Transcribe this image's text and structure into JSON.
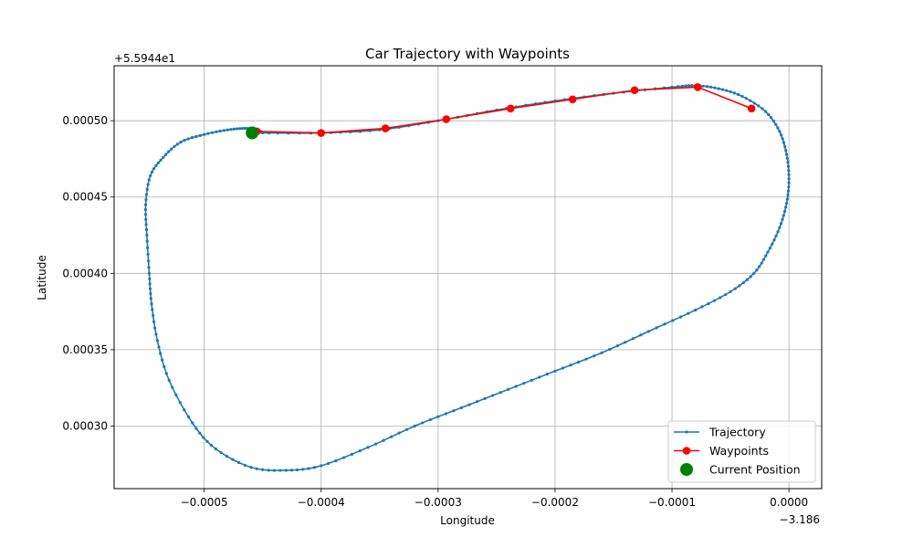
{
  "chart_data": {
    "type": "line",
    "title": "Car Trajectory with Waypoints",
    "xlabel": "Longitude",
    "ylabel": "Latitude",
    "x_offset_label": "−3.186",
    "y_offset_label": "+5.5944e1",
    "xlim": [
      -0.000577,
      2.8e-05
    ],
    "ylim": [
      0.000259,
      0.000536
    ],
    "x_ticks": [
      -0.0005,
      -0.0004,
      -0.0003,
      -0.0002,
      -0.0001,
      0.0
    ],
    "x_tick_labels": [
      "−0.0005",
      "−0.0004",
      "−0.0003",
      "−0.0002",
      "−0.0001",
      "0.0000"
    ],
    "y_ticks": [
      0.0003,
      0.00035,
      0.0004,
      0.00045,
      0.0005
    ],
    "y_tick_labels": [
      "0.00030",
      "0.00035",
      "0.00040",
      "0.00045",
      "0.00050"
    ],
    "grid": true,
    "legend_position": "lower-right",
    "colors": {
      "trajectory": "#1f77b4",
      "waypoints": "#ff0000",
      "current": "#008000"
    },
    "series": [
      {
        "name": "Trajectory",
        "key": "trajectory",
        "style": "line-dots",
        "points": [
          [
            -0.00045,
            0.000492
          ],
          [
            -0.0004,
            0.000492
          ],
          [
            -0.00035,
            0.000494
          ],
          [
            -0.0003,
            0.0005
          ],
          [
            -0.00025,
            0.000507
          ],
          [
            -0.0002,
            0.000513
          ],
          [
            -0.00015,
            0.000518
          ],
          [
            -0.0001,
            0.000522
          ],
          [
            -8e-05,
            0.000523
          ],
          [
            -6e-05,
            0.000521
          ],
          [
            -4e-05,
            0.000516
          ],
          [
            -2e-05,
            0.000506
          ],
          [
            -8e-06,
            0.000493
          ],
          [
            -2e-06,
            0.000478
          ],
          [
            0.0,
            0.000462
          ],
          [
            -2e-06,
            0.000446
          ],
          [
            -8e-06,
            0.00043
          ],
          [
            -1.8e-05,
            0.000414
          ],
          [
            -3e-05,
            0.0004
          ],
          [
            -5e-05,
            0.000388
          ],
          [
            -8e-05,
            0.000376
          ],
          [
            -0.00012,
            0.000362
          ],
          [
            -0.00016,
            0.000348
          ],
          [
            -0.0002,
            0.000336
          ],
          [
            -0.00024,
            0.000324
          ],
          [
            -0.00028,
            0.000312
          ],
          [
            -0.00032,
            0.0003
          ],
          [
            -0.00036,
            0.000286
          ],
          [
            -0.0004,
            0.000274
          ],
          [
            -0.00043,
            0.000271
          ],
          [
            -0.00046,
            0.000273
          ],
          [
            -0.00049,
            0.000285
          ],
          [
            -0.00051,
            0.000302
          ],
          [
            -0.00053,
            0.00033
          ],
          [
            -0.00054,
            0.000356
          ],
          [
            -0.000545,
            0.00038
          ],
          [
            -0.000547,
            0.0004
          ],
          [
            -0.000549,
            0.000425
          ],
          [
            -0.00055,
            0.000445
          ],
          [
            -0.000546,
            0.000464
          ],
          [
            -0.000535,
            0.000476
          ],
          [
            -0.00052,
            0.000486
          ],
          [
            -0.0005,
            0.000491
          ],
          [
            -0.00048,
            0.000494
          ],
          [
            -0.000465,
            0.000495
          ],
          [
            -0.000455,
            0.000494
          ],
          [
            -0.00045,
            0.000492
          ]
        ]
      },
      {
        "name": "Waypoints",
        "key": "waypoints",
        "style": "line-markers",
        "points": [
          [
            -0.000455,
            0.000493
          ],
          [
            -0.0004,
            0.000492
          ],
          [
            -0.000345,
            0.000495
          ],
          [
            -0.000293,
            0.000501
          ],
          [
            -0.000238,
            0.000508
          ],
          [
            -0.000185,
            0.000514
          ],
          [
            -0.000132,
            0.00052
          ],
          [
            -7.8e-05,
            0.000522
          ],
          [
            -3.2e-05,
            0.000508
          ]
        ]
      },
      {
        "name": "Current Position",
        "key": "current",
        "style": "marker",
        "points": [
          [
            -0.000459,
            0.000492
          ]
        ]
      }
    ]
  }
}
